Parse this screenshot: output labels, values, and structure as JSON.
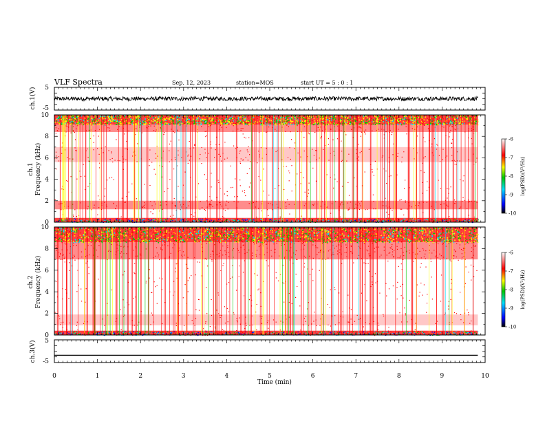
{
  "header": {
    "title": "VLF Spectra",
    "date": "Sep. 12, 2023",
    "station": "station=MOS",
    "start_time": "start UT =  5 : 0 : 1"
  },
  "chart_data": [
    {
      "type": "line",
      "id": "ch1-voltage",
      "ylabel": "ch.1(V)",
      "ylim": [
        -5,
        5
      ],
      "yticks": [
        "5",
        "-5"
      ],
      "level": 0.0,
      "noise": 0.9,
      "color": "#000000"
    },
    {
      "type": "heatmap",
      "id": "ch1-spectrogram",
      "ylabel_line1": "ch.1",
      "ylabel_line2": "Frequency (kHz)",
      "ylim": [
        0,
        10
      ],
      "yticks": [
        "0",
        "2",
        "4",
        "6",
        "8",
        "10"
      ],
      "bands_khz": [
        [
          0,
          0.4,
          "strong"
        ],
        [
          1.2,
          2.0,
          "medium"
        ],
        [
          5.6,
          7.0,
          "light"
        ],
        [
          8.4,
          9.1,
          "medium"
        ],
        [
          9.1,
          10,
          "strong"
        ]
      ],
      "colorbar": {
        "label": "log(PSD)(V²/Hz)",
        "ticks": [
          "-6",
          "-7",
          "-8",
          "-9",
          "-10"
        ]
      }
    },
    {
      "type": "heatmap",
      "id": "ch2-spectrogram",
      "ylabel_line1": "ch.2",
      "ylabel_line2": "Frequency (kHz)",
      "ylim": [
        0,
        10
      ],
      "yticks": [
        "0",
        "2",
        "4",
        "6",
        "8",
        "10"
      ],
      "bands_khz": [
        [
          0,
          0.4,
          "strong"
        ],
        [
          0.9,
          1.9,
          "light"
        ],
        [
          7.0,
          8.6,
          "medium"
        ],
        [
          8.6,
          10,
          "strong"
        ]
      ],
      "colorbar": {
        "label": "log(PSD)(V²/Hz)",
        "ticks": [
          "-6",
          "-7",
          "-8",
          "-9",
          "-10"
        ]
      }
    },
    {
      "type": "line",
      "id": "ch3-voltage",
      "ylabel": "ch.3(V)",
      "ylim": [
        -5,
        5
      ],
      "yticks": [
        "5",
        "-5"
      ],
      "level": -1.8,
      "noise": 0.0,
      "color": "#000000"
    }
  ],
  "xaxis": {
    "xlabel": "Time (min)",
    "xlim": [
      0,
      10
    ],
    "ticks": [
      "0",
      "1",
      "2",
      "3",
      "4",
      "5",
      "6",
      "7",
      "8",
      "9",
      "10"
    ],
    "data_end": 9.83
  },
  "colors": {
    "strong": "#ff0000",
    "mid": "#ffff00",
    "green": "#00c800",
    "cyan": "#00e0ff",
    "blue": "#0000ff"
  }
}
